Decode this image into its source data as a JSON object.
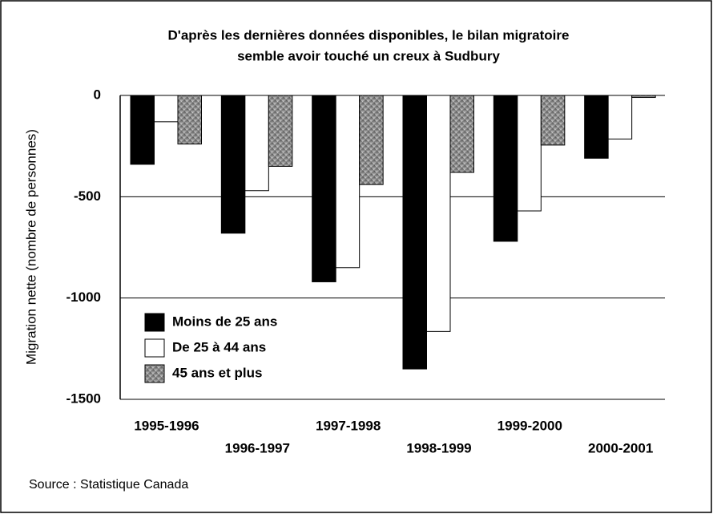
{
  "chart_data": {
    "type": "bar",
    "title": [
      "D'après les dernières données disponibles, le bilan migratoire",
      "semble avoir touché un creux à Sudbury"
    ],
    "y_label": "Migration nette (nombre de personnes)",
    "source": "Source : Statistique Canada",
    "categories": [
      "1995-1996",
      "1996-1997",
      "1997-1998",
      "1998-1999",
      "1999-2000",
      "2000-2001"
    ],
    "series": [
      {
        "name": "Moins de 25 ans",
        "color": "#000000",
        "values": [
          -340,
          -680,
          -920,
          -1350,
          -720,
          -310
        ]
      },
      {
        "name": "De 25 à 44 ans",
        "color": "#ffffff",
        "values": [
          -130,
          -470,
          -850,
          -1165,
          -570,
          -215
        ]
      },
      {
        "name": "45 ans et plus",
        "color": "#808080",
        "hatched": true,
        "values": [
          -240,
          -350,
          -440,
          -380,
          -245,
          -10
        ]
      }
    ],
    "ylim": [
      -1500,
      0
    ],
    "yticks": [
      0,
      -500,
      -1000,
      -1500
    ],
    "grid": true,
    "legend": "lower-left"
  }
}
